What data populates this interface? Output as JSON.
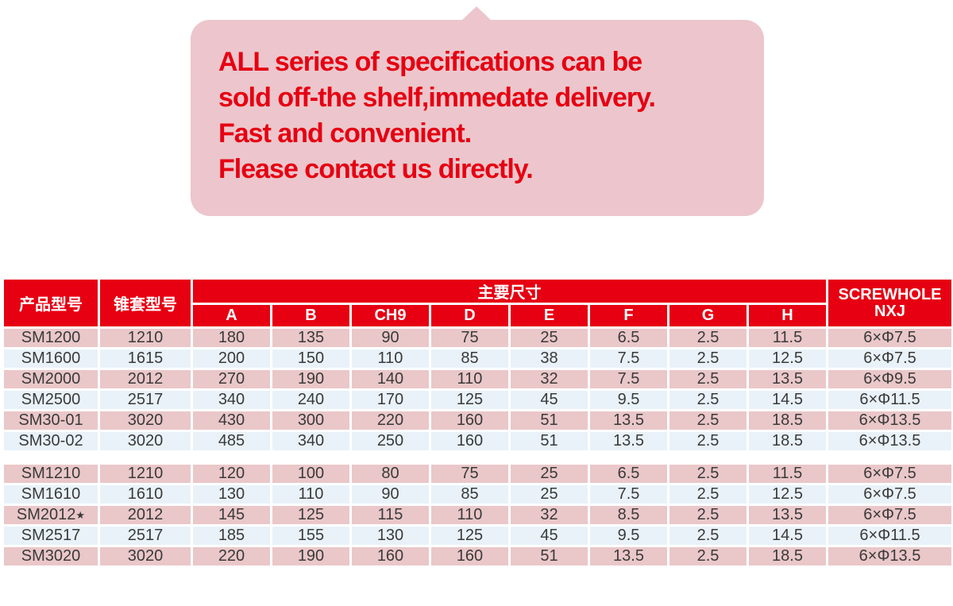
{
  "colors": {
    "accent_red": "#e60012",
    "bubble_pink": "#ecc6cc",
    "row_pink": "#eac7c9",
    "row_blue": "#e9f2f9",
    "cell_text": "#3a3a3a",
    "header_text": "#ffffff"
  },
  "callout": {
    "lines": [
      "ALL series of specifications can be",
      "sold off-the shelf,immedate delivery.",
      "Fast and convenient.",
      "Flease contact us directly."
    ]
  },
  "table": {
    "headers": {
      "product_model": "产品型号",
      "taper_sleeve_model": "锥套型号",
      "main_dimensions": "主要尺寸",
      "screwhole_line1": "SCREWHOLE",
      "screwhole_line2": "NXJ",
      "dimension_columns": [
        "A",
        "B",
        "CH9",
        "D",
        "E",
        "F",
        "G",
        "H"
      ]
    },
    "groups": [
      {
        "rows": [
          {
            "model": "SM1200",
            "sleeve": "1210",
            "values": [
              "180",
              "135",
              "90",
              "75",
              "25",
              "6.5",
              "2.5",
              "11.5"
            ],
            "screwhole": "6×Φ7.5"
          },
          {
            "model": "SM1600",
            "sleeve": "1615",
            "values": [
              "200",
              "150",
              "110",
              "85",
              "38",
              "7.5",
              "2.5",
              "12.5"
            ],
            "screwhole": "6×Φ7.5"
          },
          {
            "model": "SM2000",
            "sleeve": "2012",
            "values": [
              "270",
              "190",
              "140",
              "110",
              "32",
              "7.5",
              "2.5",
              "13.5"
            ],
            "screwhole": "6×Φ9.5"
          },
          {
            "model": "SM2500",
            "sleeve": "2517",
            "values": [
              "340",
              "240",
              "170",
              "125",
              "45",
              "9.5",
              "2.5",
              "14.5"
            ],
            "screwhole": "6×Φ11.5"
          },
          {
            "model": "SM30-01",
            "sleeve": "3020",
            "values": [
              "430",
              "300",
              "220",
              "160",
              "51",
              "13.5",
              "2.5",
              "18.5"
            ],
            "screwhole": "6×Φ13.5"
          },
          {
            "model": "SM30-02",
            "sleeve": "3020",
            "values": [
              "485",
              "340",
              "250",
              "160",
              "51",
              "13.5",
              "2.5",
              "18.5"
            ],
            "screwhole": "6×Φ13.5"
          }
        ]
      },
      {
        "rows": [
          {
            "model": "SM1210",
            "sleeve": "1210",
            "values": [
              "120",
              "100",
              "80",
              "75",
              "25",
              "6.5",
              "2.5",
              "11.5"
            ],
            "screwhole": "6×Φ7.5"
          },
          {
            "model": "SM1610",
            "sleeve": "1610",
            "values": [
              "130",
              "110",
              "90",
              "85",
              "25",
              "7.5",
              "2.5",
              "12.5"
            ],
            "screwhole": "6×Φ7.5"
          },
          {
            "model": "SM2012★",
            "sleeve": "2012",
            "values": [
              "145",
              "125",
              "115",
              "110",
              "32",
              "8.5",
              "2.5",
              "13.5"
            ],
            "screwhole": "6×Φ7.5"
          },
          {
            "model": "SM2517",
            "sleeve": "2517",
            "values": [
              "185",
              "155",
              "130",
              "125",
              "45",
              "9.5",
              "2.5",
              "14.5"
            ],
            "screwhole": "6×Φ11.5"
          },
          {
            "model": "SM3020",
            "sleeve": "3020",
            "values": [
              "220",
              "190",
              "160",
              "160",
              "51",
              "13.5",
              "2.5",
              "18.5"
            ],
            "screwhole": "6×Φ13.5"
          }
        ]
      }
    ]
  }
}
